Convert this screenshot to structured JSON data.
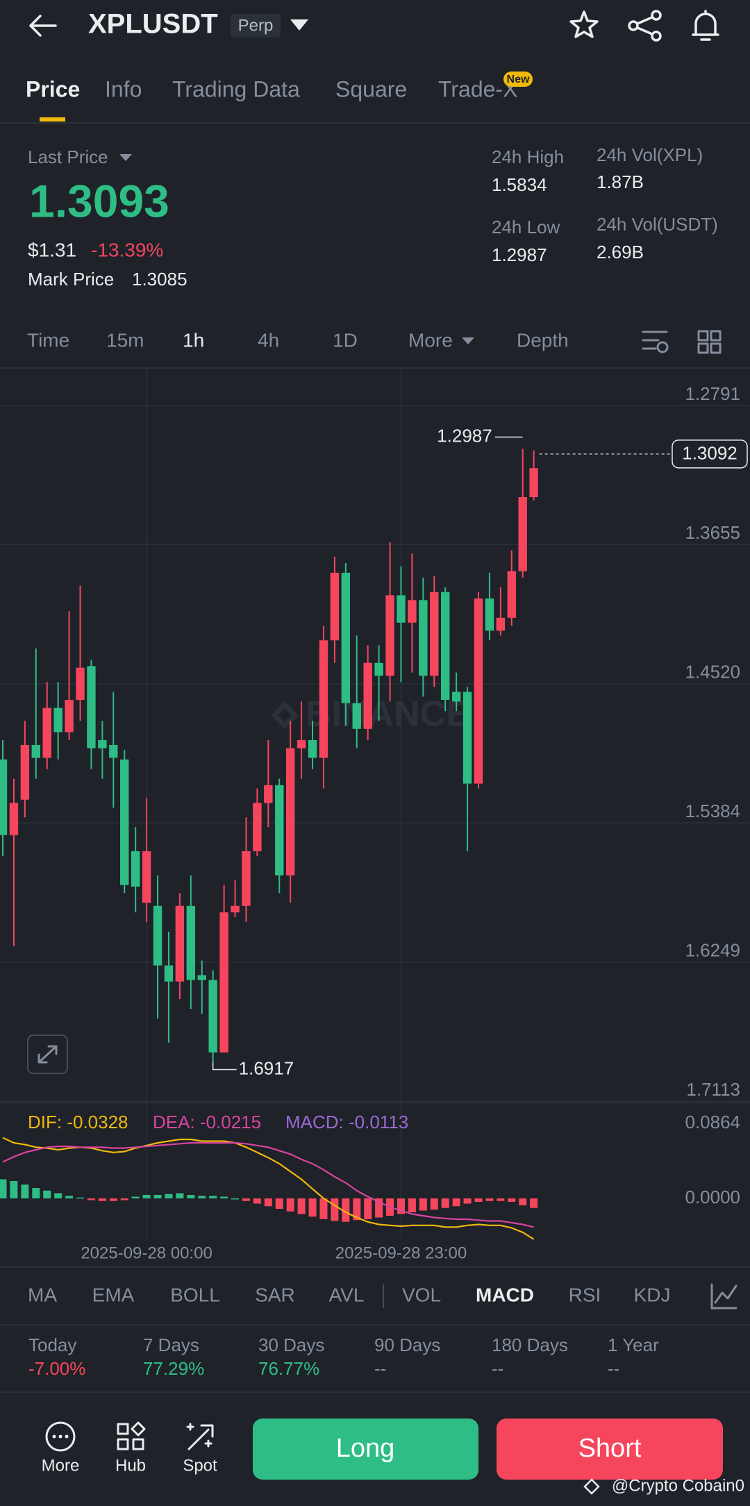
{
  "header": {
    "symbol": "XPLUSDT",
    "badge": "Perp"
  },
  "tabs": [
    "Price",
    "Info",
    "Trading Data",
    "Square",
    "Trade-X"
  ],
  "tab_badge": "New",
  "ticker": {
    "last_price_label": "Last Price",
    "last_price": "1.3093",
    "usd_price": "$1.31",
    "change": "-13.39%",
    "mark_price_label": "Mark Price",
    "mark_price": "1.3085",
    "stats": [
      {
        "label": "24h High",
        "value": "1.5834"
      },
      {
        "label": "24h Low",
        "value": "1.2987"
      },
      {
        "label": "24h Vol(XPL)",
        "value": "1.87B"
      },
      {
        "label": "24h Vol(USDT)",
        "value": "2.69B"
      }
    ]
  },
  "intervals": [
    "Time",
    "15m",
    "1h",
    "4h",
    "1D",
    "More",
    "Depth"
  ],
  "chart_data": [
    {
      "type": "candlestick",
      "categories": [
        null,
        null,
        null,
        null,
        null,
        null,
        null,
        null,
        null,
        null,
        null,
        null,
        null,
        "2025-09-28 00:00",
        null,
        null,
        null,
        null,
        null,
        null,
        null,
        null,
        null,
        null,
        null,
        null,
        null,
        null,
        null,
        null,
        null,
        null,
        null,
        null,
        null,
        null,
        "2025-09-28 23:00",
        null,
        null,
        null,
        null,
        null,
        null,
        null,
        null,
        null,
        null,
        null,
        null
      ],
      "open": [
        1.499,
        1.546,
        1.524,
        1.49,
        1.498,
        1.467,
        1.482,
        1.462,
        1.441,
        1.487,
        1.49,
        1.499,
        1.556,
        1.588,
        1.59,
        1.627,
        1.637,
        1.59,
        1.633,
        1.636,
        1.681,
        1.594,
        1.59,
        1.556,
        1.526,
        1.515,
        1.571,
        1.492,
        1.487,
        1.498,
        1.425,
        1.383,
        1.464,
        1.48,
        1.439,
        1.447,
        1.397,
        1.414,
        1.4,
        1.447,
        1.395,
        1.457,
        1.457,
        1.514,
        1.399,
        1.419,
        1.411,
        1.382,
        1.336
      ],
      "high": [
        1.559,
        1.615,
        1.535,
        1.511,
        1.505,
        1.499,
        1.487,
        1.475,
        1.505,
        1.511,
        1.529,
        1.582,
        1.594,
        1.6,
        1.66,
        1.675,
        1.648,
        1.654,
        1.657,
        1.687,
        1.681,
        1.597,
        1.6,
        1.559,
        1.541,
        1.582,
        1.588,
        1.511,
        1.505,
        1.517,
        1.439,
        1.478,
        1.492,
        1.487,
        1.475,
        1.463,
        1.451,
        1.445,
        1.46,
        1.454,
        1.469,
        1.469,
        1.556,
        1.517,
        1.425,
        1.422,
        1.416,
        1.386,
        1.338
      ],
      "low": [
        1.487,
        1.511,
        1.475,
        1.43,
        1.451,
        1.451,
        1.407,
        1.391,
        1.437,
        1.475,
        1.457,
        1.493,
        1.541,
        1.523,
        1.571,
        1.606,
        1.582,
        1.571,
        1.624,
        1.63,
        1.577,
        1.574,
        1.535,
        1.517,
        1.487,
        1.511,
        1.475,
        1.463,
        1.475,
        1.416,
        1.373,
        1.377,
        1.422,
        1.428,
        1.428,
        1.364,
        1.379,
        1.371,
        1.386,
        1.385,
        1.392,
        1.445,
        1.454,
        1.395,
        1.383,
        1.392,
        1.369,
        1.306,
        1.307
      ],
      "close": [
        1.546,
        1.526,
        1.49,
        1.498,
        1.467,
        1.482,
        1.462,
        1.442,
        1.492,
        1.492,
        1.498,
        1.577,
        1.578,
        1.556,
        1.627,
        1.637,
        1.59,
        1.636,
        1.636,
        1.681,
        1.594,
        1.59,
        1.556,
        1.526,
        1.515,
        1.571,
        1.492,
        1.487,
        1.498,
        1.425,
        1.383,
        1.464,
        1.48,
        1.439,
        1.447,
        1.397,
        1.414,
        1.4,
        1.447,
        1.395,
        1.462,
        1.463,
        1.514,
        1.399,
        1.419,
        1.411,
        1.382,
        1.336,
        1.318
      ],
      "up_color": "#2ebd85",
      "down_color": "#f6465d",
      "ylim": [
        1.7122,
        1.2562
      ],
      "yticks": [
        1.2791,
        1.3655,
        {
          "value": 1.452,
          "label": "1.4520"
        },
        1.5384,
        1.6249,
        1.7113
      ],
      "grid": true,
      "low_marker": 1.2987,
      "high_marker": 1.6917,
      "last_price_marker": 1.3092,
      "watermark": "BINANCE"
    },
    {
      "type": "macd",
      "series": [
        {
          "name": "DIF: -0.0328",
          "type": "line",
          "color": "#f0b90b",
          "values": [
            0.07,
            0.064,
            0.062,
            0.059,
            0.058,
            0.056,
            0.058,
            0.059,
            0.058,
            0.055,
            0.053,
            0.054,
            0.058,
            0.061,
            0.064,
            0.066,
            0.068,
            0.068,
            0.066,
            0.066,
            0.066,
            0.064,
            0.059,
            0.053,
            0.047,
            0.04,
            0.031,
            0.022,
            0.011,
            0.0,
            -0.008,
            -0.016,
            -0.022,
            -0.027,
            -0.03,
            -0.031,
            -0.032,
            -0.031,
            -0.031,
            -0.031,
            -0.033,
            -0.033,
            -0.031,
            -0.03,
            -0.031,
            -0.031,
            -0.034,
            -0.039,
            -0.047
          ]
        },
        {
          "name": "DEA: -0.0215",
          "type": "line",
          "color": "#d9449f",
          "values": [
            0.042,
            0.048,
            0.053,
            0.056,
            0.059,
            0.06,
            0.06,
            0.059,
            0.059,
            0.059,
            0.058,
            0.058,
            0.059,
            0.06,
            0.061,
            0.062,
            0.063,
            0.064,
            0.064,
            0.064,
            0.064,
            0.064,
            0.063,
            0.061,
            0.059,
            0.055,
            0.051,
            0.045,
            0.04,
            0.033,
            0.025,
            0.018,
            0.009,
            0.002,
            -0.004,
            -0.01,
            -0.014,
            -0.018,
            -0.02,
            -0.022,
            -0.023,
            -0.024,
            -0.024,
            -0.025,
            -0.026,
            -0.026,
            -0.028,
            -0.03,
            -0.033
          ]
        },
        {
          "name": "MACD: -0.0113",
          "type": "bar",
          "color": "#9c6ad6",
          "up_color": "#2ebd85",
          "down_color": "#f6465d",
          "values": [
            0.022,
            0.02,
            0.016,
            0.012,
            0.009,
            0.006,
            0.003,
            0.001,
            -0.002,
            -0.003,
            -0.003,
            -0.002,
            0.002,
            0.004,
            0.004,
            0.005,
            0.006,
            0.004,
            0.003,
            0.003,
            0.002,
            0.0,
            -0.003,
            -0.006,
            -0.009,
            -0.012,
            -0.015,
            -0.018,
            -0.021,
            -0.024,
            -0.026,
            -0.027,
            -0.025,
            -0.024,
            -0.022,
            -0.02,
            -0.018,
            -0.016,
            -0.014,
            -0.013,
            -0.011,
            -0.009,
            -0.006,
            -0.004,
            -0.003,
            -0.003,
            -0.004,
            -0.008,
            -0.011
          ]
        }
      ],
      "ylim": [
        -0.0464,
        0.1088
      ],
      "yticks": [
        0.0864,
        {
          "value": 0,
          "label": "0.0000"
        }
      ],
      "grid": false
    }
  ],
  "indicators": [
    "MA",
    "EMA",
    "BOLL",
    "SAR",
    "AVL",
    "VOL",
    "MACD",
    "RSI",
    "KDJ"
  ],
  "performance": [
    {
      "period": "Today",
      "change": "-7.00%"
    },
    {
      "period": "7 Days",
      "change": "77.29%"
    },
    {
      "period": "30 Days",
      "change": "76.77%"
    },
    {
      "period": "90 Days",
      "change": "--"
    },
    {
      "period": "180 Days",
      "change": "--"
    },
    {
      "period": "1 Year",
      "change": "--"
    }
  ],
  "actions": {
    "tools": [
      "More",
      "Hub",
      "Spot"
    ],
    "long": "Long",
    "short": "Short"
  },
  "watermark": "@Crypto Cobain0"
}
